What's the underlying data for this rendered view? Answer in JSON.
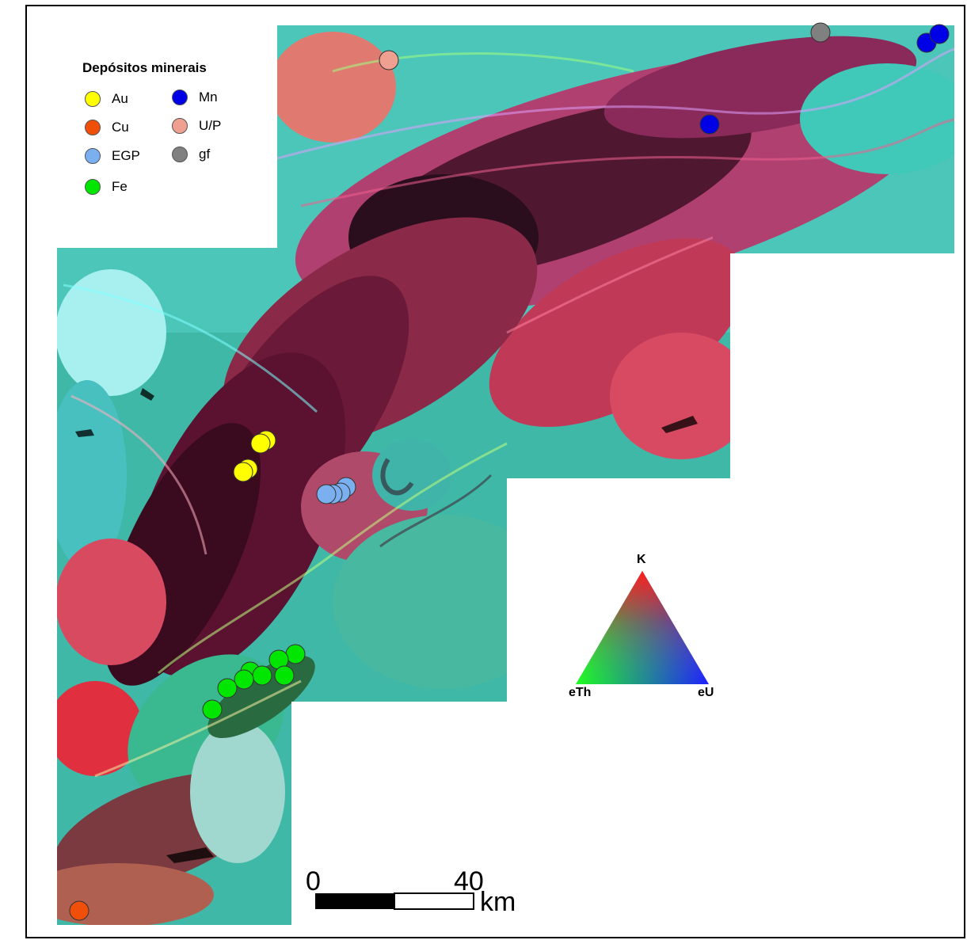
{
  "legend": {
    "title": "Depósitos minerais",
    "items": [
      {
        "key": "au",
        "label": "Au",
        "color": "#ffff00"
      },
      {
        "key": "mn",
        "label": "Mn",
        "color": "#0000e6"
      },
      {
        "key": "cu",
        "label": "Cu",
        "color": "#f04f0a"
      },
      {
        "key": "up",
        "label": "U/P",
        "color": "#f0a090"
      },
      {
        "key": "egp",
        "label": "EGP",
        "color": "#7ab0f0"
      },
      {
        "key": "gf",
        "label": "gf",
        "color": "#808080"
      },
      {
        "key": "fe",
        "label": "Fe",
        "color": "#00e600"
      }
    ]
  },
  "ternary": {
    "top": "K",
    "left": "eTh",
    "right": "eU"
  },
  "scale": {
    "start": "0",
    "end": "40",
    "unit": "km"
  },
  "colors": {
    "K": "#ff0000",
    "eTh": "#00ff00",
    "eU": "#0000ff"
  },
  "deposits": [
    {
      "type": "au",
      "count": 4
    },
    {
      "type": "egp",
      "count": 4
    },
    {
      "type": "fe",
      "count": 9
    },
    {
      "type": "cu",
      "count": 1
    },
    {
      "type": "up",
      "count": 1
    },
    {
      "type": "mn",
      "count": 3
    },
    {
      "type": "gf",
      "count": 1
    }
  ]
}
